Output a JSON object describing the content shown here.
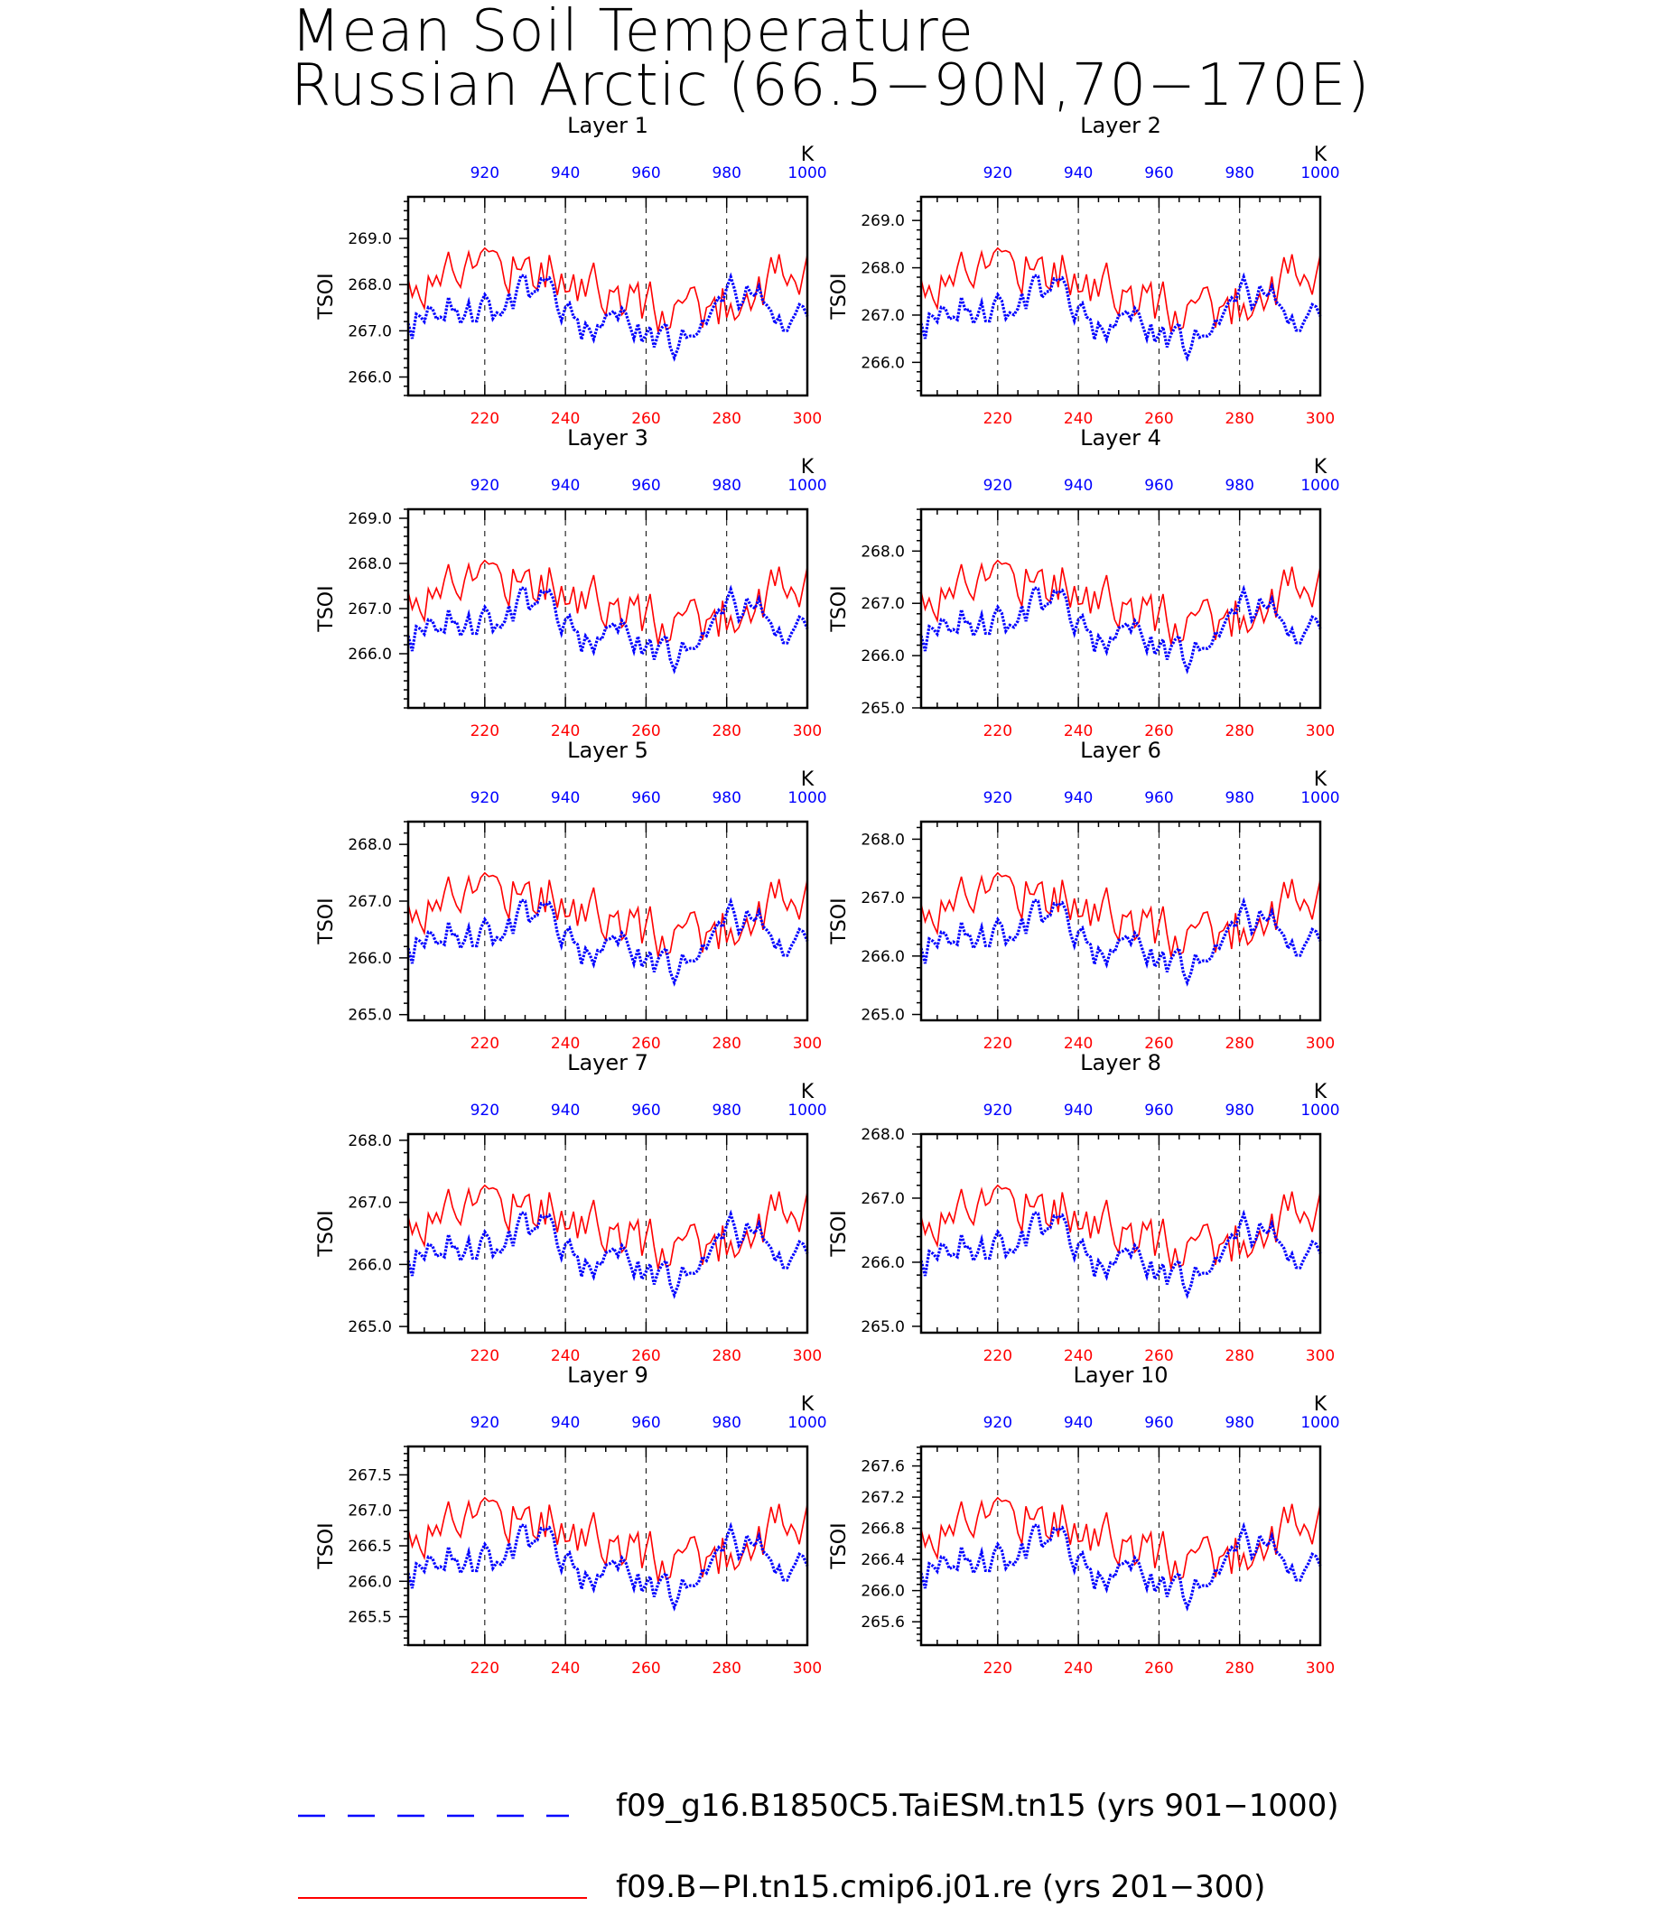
{
  "figure": {
    "title_line1": "Mean Soil Temperature",
    "title_line2": "Russian Arctic (66.5−90N,70−170E)"
  },
  "colors": {
    "series_a": "#0000ff",
    "series_b": "#ff0000",
    "top_axis_labels": "#0000ff",
    "bottom_axis_labels": "#ff0000",
    "axes": "#000000"
  },
  "legend": {
    "items": [
      {
        "label": "f09_g16.B1850C5.TaiESM.tn15 (yrs 901−1000)",
        "color": "#0000ff",
        "style": "dashed"
      },
      {
        "label": "f09.B−PI.tn15.cmip6.j01.re (yrs 201−300)",
        "color": "#ff0000",
        "style": "solid"
      }
    ]
  },
  "chart_data": [
    {
      "type": "line",
      "title": "Layer 1",
      "ylabel": "TSOI",
      "top_unit": "K",
      "ylim": [
        265.6,
        269.9
      ],
      "yticks": [
        266.0,
        267.0,
        268.0,
        269.0
      ],
      "ytick_labels": [
        "266.0",
        "267.0",
        "268.0",
        "269.0"
      ],
      "bottom_x_ticks": [
        220,
        240,
        260,
        280,
        300
      ],
      "top_x_ticks": [
        920,
        940,
        960,
        980,
        1000
      ]
    },
    {
      "type": "line",
      "title": "Layer 2",
      "ylabel": "TSOI",
      "top_unit": "K",
      "ylim": [
        265.3,
        269.5
      ],
      "yticks": [
        266.0,
        267.0,
        268.0,
        269.0
      ],
      "ytick_labels": [
        "266.0",
        "267.0",
        "268.0",
        "269.0"
      ],
      "bottom_x_ticks": [
        220,
        240,
        260,
        280,
        300
      ],
      "top_x_ticks": [
        920,
        940,
        960,
        980,
        1000
      ]
    },
    {
      "type": "line",
      "title": "Layer 3",
      "ylabel": "TSOI",
      "top_unit": "K",
      "ylim": [
        264.8,
        269.2
      ],
      "yticks": [
        266.0,
        267.0,
        268.0,
        269.0
      ],
      "ytick_labels": [
        "266.0",
        "267.0",
        "268.0",
        "269.0"
      ],
      "bottom_x_ticks": [
        220,
        240,
        260,
        280,
        300
      ],
      "top_x_ticks": [
        920,
        940,
        960,
        980,
        1000
      ]
    },
    {
      "type": "line",
      "title": "Layer 4",
      "ylabel": "TSOI",
      "top_unit": "K",
      "ylim": [
        265.0,
        268.8
      ],
      "yticks": [
        265.0,
        266.0,
        267.0,
        268.0
      ],
      "ytick_labels": [
        "265.0",
        "266.0",
        "267.0",
        "268.0"
      ],
      "bottom_x_ticks": [
        220,
        240,
        260,
        280,
        300
      ],
      "top_x_ticks": [
        920,
        940,
        960,
        980,
        1000
      ]
    },
    {
      "type": "line",
      "title": "Layer 5",
      "ylabel": "TSOI",
      "top_unit": "K",
      "ylim": [
        264.9,
        268.4
      ],
      "yticks": [
        265.0,
        266.0,
        267.0,
        268.0
      ],
      "ytick_labels": [
        "265.0",
        "266.0",
        "267.0",
        "268.0"
      ],
      "bottom_x_ticks": [
        220,
        240,
        260,
        280,
        300
      ],
      "top_x_ticks": [
        920,
        940,
        960,
        980,
        1000
      ]
    },
    {
      "type": "line",
      "title": "Layer 6",
      "ylabel": "TSOI",
      "top_unit": "K",
      "ylim": [
        264.9,
        268.3
      ],
      "yticks": [
        265.0,
        266.0,
        267.0,
        268.0
      ],
      "ytick_labels": [
        "265.0",
        "266.0",
        "267.0",
        "268.0"
      ],
      "bottom_x_ticks": [
        220,
        240,
        260,
        280,
        300
      ],
      "top_x_ticks": [
        920,
        940,
        960,
        980,
        1000
      ]
    },
    {
      "type": "line",
      "title": "Layer 7",
      "ylabel": "TSOI",
      "top_unit": "K",
      "ylim": [
        264.9,
        268.1
      ],
      "yticks": [
        265.0,
        266.0,
        267.0,
        268.0
      ],
      "ytick_labels": [
        "265.0",
        "266.0",
        "267.0",
        "268.0"
      ],
      "bottom_x_ticks": [
        220,
        240,
        260,
        280,
        300
      ],
      "top_x_ticks": [
        920,
        940,
        960,
        980,
        1000
      ]
    },
    {
      "type": "line",
      "title": "Layer 8",
      "ylabel": "TSOI",
      "top_unit": "K",
      "ylim": [
        264.9,
        268.0
      ],
      "yticks": [
        265.0,
        266.0,
        267.0,
        268.0
      ],
      "ytick_labels": [
        "265.0",
        "266.0",
        "267.0",
        "268.0"
      ],
      "bottom_x_ticks": [
        220,
        240,
        260,
        280,
        300
      ],
      "top_x_ticks": [
        920,
        940,
        960,
        980,
        1000
      ]
    },
    {
      "type": "line",
      "title": "Layer 9",
      "ylabel": "TSOI",
      "top_unit": "K",
      "ylim": [
        265.1,
        267.9
      ],
      "yticks": [
        265.5,
        266.0,
        266.5,
        267.0,
        267.5
      ],
      "ytick_labels": [
        "265.5",
        "266.0",
        "266.5",
        "267.0",
        "267.5"
      ],
      "bottom_x_ticks": [
        220,
        240,
        260,
        280,
        300
      ],
      "top_x_ticks": [
        920,
        940,
        960,
        980,
        1000
      ]
    },
    {
      "type": "line",
      "title": "Layer 10",
      "ylabel": "TSOI",
      "top_unit": "K",
      "ylim": [
        265.3,
        267.85
      ],
      "yticks": [
        265.6,
        266.0,
        266.4,
        266.8,
        267.2,
        267.6
      ],
      "ytick_labels": [
        "265.6",
        "266.0",
        "266.4",
        "266.8",
        "267.2",
        "267.6"
      ],
      "bottom_x_ticks": [
        220,
        240,
        260,
        280,
        300
      ],
      "top_x_ticks": [
        920,
        940,
        960,
        980,
        1000
      ]
    }
  ]
}
